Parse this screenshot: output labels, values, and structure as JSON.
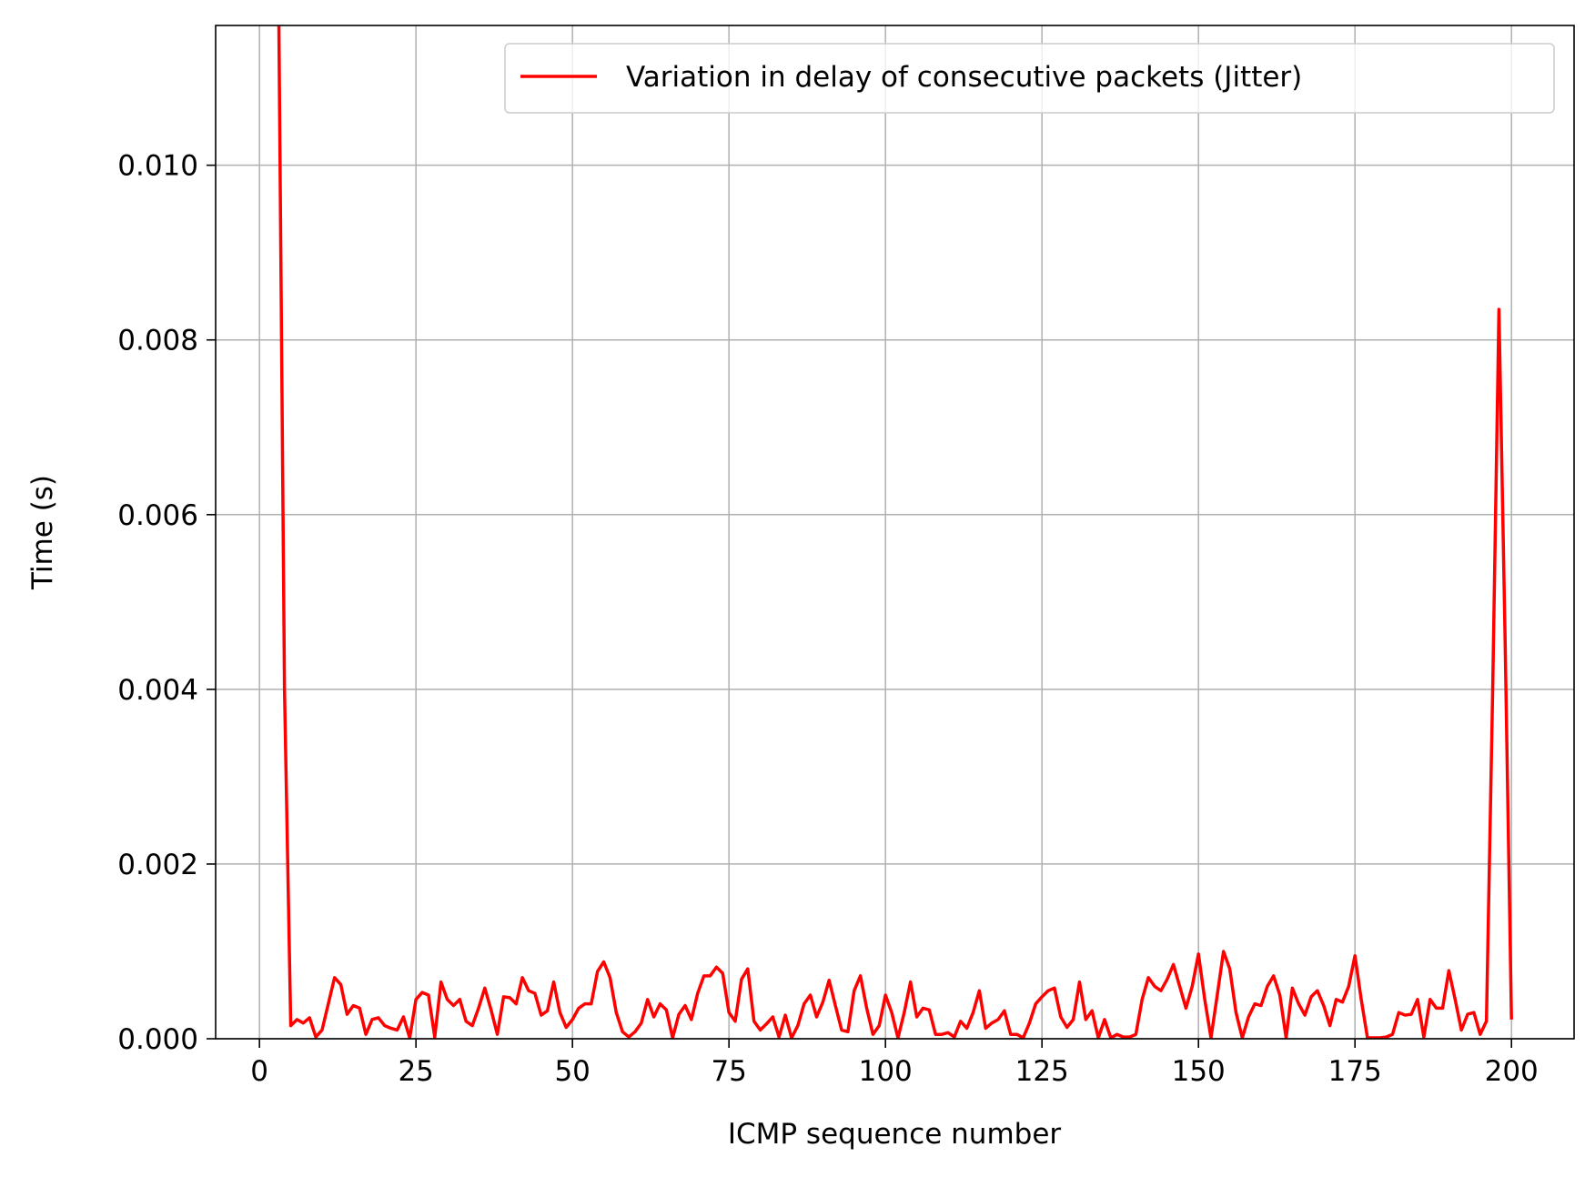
{
  "chart_data": {
    "type": "line",
    "xlabel": "ICMP sequence number",
    "ylabel": "Time (s)",
    "xlim": [
      -7,
      210
    ],
    "ylim": [
      0,
      0.0116
    ],
    "xticks": [
      0,
      25,
      50,
      75,
      100,
      125,
      150,
      175,
      200
    ],
    "xtick_labels": [
      "0",
      "25",
      "50",
      "75",
      "100",
      "125",
      "150",
      "175",
      "200"
    ],
    "yticks": [
      0.0,
      0.002,
      0.004,
      0.006,
      0.008,
      0.01
    ],
    "ytick_labels": [
      "0.000",
      "0.002",
      "0.004",
      "0.006",
      "0.008",
      "0.010"
    ],
    "grid": true,
    "legend_position": "top-right",
    "series": [
      {
        "name": "Variation in delay of consecutive packets (Jitter)",
        "color": "#ff0000",
        "x": [
          3,
          4,
          5,
          6,
          7,
          8,
          9,
          10,
          11,
          12,
          13,
          14,
          15,
          16,
          17,
          18,
          19,
          20,
          21,
          22,
          23,
          24,
          25,
          26,
          27,
          28,
          29,
          30,
          31,
          32,
          33,
          34,
          35,
          36,
          37,
          38,
          39,
          40,
          41,
          42,
          43,
          44,
          45,
          46,
          47,
          48,
          49,
          50,
          51,
          52,
          53,
          54,
          55,
          56,
          57,
          58,
          59,
          60,
          61,
          62,
          63,
          64,
          65,
          66,
          67,
          68,
          69,
          70,
          71,
          72,
          73,
          74,
          75,
          76,
          77,
          78,
          79,
          80,
          81,
          82,
          83,
          84,
          85,
          86,
          87,
          88,
          89,
          90,
          91,
          92,
          93,
          94,
          95,
          96,
          97,
          98,
          99,
          100,
          101,
          102,
          103,
          104,
          105,
          106,
          107,
          108,
          109,
          110,
          111,
          112,
          113,
          114,
          115,
          116,
          117,
          118,
          119,
          120,
          121,
          122,
          123,
          124,
          125,
          126,
          127,
          128,
          129,
          130,
          131,
          132,
          133,
          134,
          135,
          136,
          137,
          138,
          139,
          140,
          141,
          142,
          143,
          144,
          145,
          146,
          147,
          148,
          149,
          150,
          151,
          152,
          153,
          154,
          155,
          156,
          157,
          158,
          159,
          160,
          161,
          162,
          163,
          164,
          165,
          166,
          167,
          168,
          169,
          170,
          171,
          172,
          173,
          174,
          175,
          176,
          177,
          178,
          179,
          180,
          181,
          182,
          183,
          184,
          185,
          186,
          187,
          188,
          189,
          190,
          191,
          192,
          193,
          194,
          195,
          196,
          197,
          198,
          199,
          200
        ],
        "y": [
          0.0125,
          0.004,
          0.00015,
          0.00022,
          0.00018,
          0.00024,
          2e-05,
          0.0001,
          0.0004,
          0.0007,
          0.00062,
          0.00028,
          0.00038,
          0.00035,
          5e-05,
          0.00022,
          0.00024,
          0.00015,
          0.00012,
          0.0001,
          0.00025,
          1e-05,
          0.00045,
          0.00053,
          0.0005,
          2e-05,
          0.00065,
          0.00045,
          0.00038,
          0.00045,
          0.0002,
          0.00015,
          0.00035,
          0.00058,
          0.00033,
          5e-05,
          0.00048,
          0.00047,
          0.0004,
          0.0007,
          0.00055,
          0.00052,
          0.00027,
          0.00032,
          0.00065,
          0.0003,
          0.00013,
          0.00022,
          0.00035,
          0.0004,
          0.0004,
          0.00077,
          0.00088,
          0.0007,
          0.0003,
          8e-05,
          2e-05,
          8e-05,
          0.00018,
          0.00045,
          0.00025,
          0.0004,
          0.00033,
          1e-05,
          0.00028,
          0.00038,
          0.00022,
          0.00052,
          0.00072,
          0.00072,
          0.00082,
          0.00075,
          0.0003,
          0.0002,
          0.00068,
          0.0008,
          0.0002,
          0.0001,
          0.00017,
          0.00025,
          2e-05,
          0.00027,
          1e-05,
          0.00015,
          0.0004,
          0.0005,
          0.00025,
          0.00042,
          0.00067,
          0.00038,
          0.0001,
          8e-05,
          0.00055,
          0.00072,
          0.00035,
          5e-05,
          0.00015,
          0.0005,
          0.0003,
          1e-05,
          0.0003,
          0.00065,
          0.00025,
          0.00035,
          0.00033,
          5e-05,
          5e-05,
          7e-05,
          2e-05,
          0.0002,
          0.00012,
          0.0003,
          0.00055,
          0.00012,
          0.00018,
          0.00022,
          0.00032,
          5e-05,
          5e-05,
          1e-05,
          0.00018,
          0.0004,
          0.00048,
          0.00055,
          0.00058,
          0.00025,
          0.00013,
          0.00022,
          0.00065,
          0.00022,
          0.00032,
          1e-05,
          0.00022,
          1e-05,
          5e-05,
          2e-05,
          2e-05,
          5e-05,
          0.00045,
          0.0007,
          0.0006,
          0.00055,
          0.00068,
          0.00085,
          0.0006,
          0.00035,
          0.0006,
          0.00097,
          0.00045,
          1e-05,
          0.0005,
          0.001,
          0.0008,
          0.0003,
          1e-05,
          0.00025,
          0.0004,
          0.00038,
          0.0006,
          0.00072,
          0.0005,
          1e-05,
          0.00058,
          0.0004,
          0.00027,
          0.00048,
          0.00055,
          0.00038,
          0.00015,
          0.00045,
          0.00042,
          0.0006,
          0.00095,
          0.00045,
          1e-05,
          1e-05,
          1e-05,
          2e-05,
          5e-05,
          0.0003,
          0.00027,
          0.00028,
          0.00045,
          2e-05,
          0.00045,
          0.00035,
          0.00035,
          0.00078,
          0.00045,
          0.0001,
          0.00028,
          0.0003,
          5e-05,
          0.0002,
          0.004,
          0.00835,
          0.0045,
          0.00022
        ]
      }
    ]
  }
}
